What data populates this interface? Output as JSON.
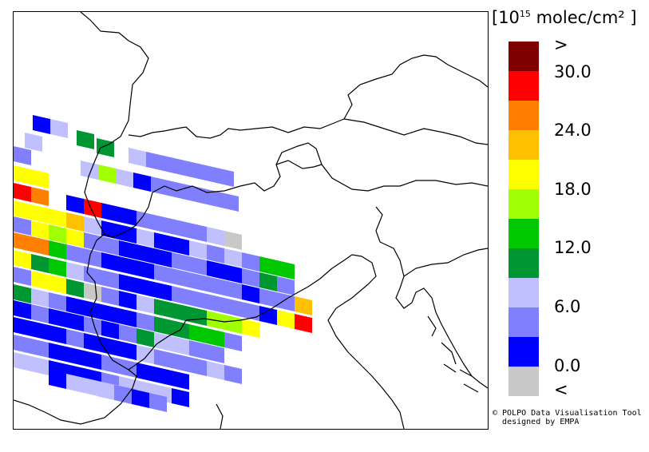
{
  "legend": {
    "units_prefix": "[10",
    "units_exponent": "15",
    "units_suffix": " molec/cm² ]",
    "over_label": ">",
    "under_label": "<",
    "ticks": [
      "30.0",
      "24.0",
      "18.0",
      "12.0",
      "6.0",
      "0.0"
    ],
    "bins": [
      {
        "range": ">30",
        "color": "#7f0000"
      },
      {
        "range": "27-30",
        "color": "#ff0000"
      },
      {
        "range": "24-27",
        "color": "#ff8000"
      },
      {
        "range": "21-24",
        "color": "#ffc000"
      },
      {
        "range": "18-21",
        "color": "#ffff00"
      },
      {
        "range": "15-18",
        "color": "#a0ff00"
      },
      {
        "range": "12-15",
        "color": "#00c800"
      },
      {
        "range": "9-12",
        "color": "#009632"
      },
      {
        "range": "6-9",
        "color": "#c0c0ff"
      },
      {
        "range": "3-6",
        "color": "#8080ff"
      },
      {
        "range": "0-3",
        "color": "#0000ff"
      },
      {
        "range": "<0",
        "color": "#c8c8c8"
      }
    ]
  },
  "credit": {
    "line1": "© POLPO Data Visualisation Tool",
    "line2": "designed by EMPA"
  },
  "map": {
    "region": "Northern Italy / Alps",
    "colors": {
      "border": "#000000",
      "land": "#ffffff",
      "no_data": "#c8c8c8"
    }
  }
}
